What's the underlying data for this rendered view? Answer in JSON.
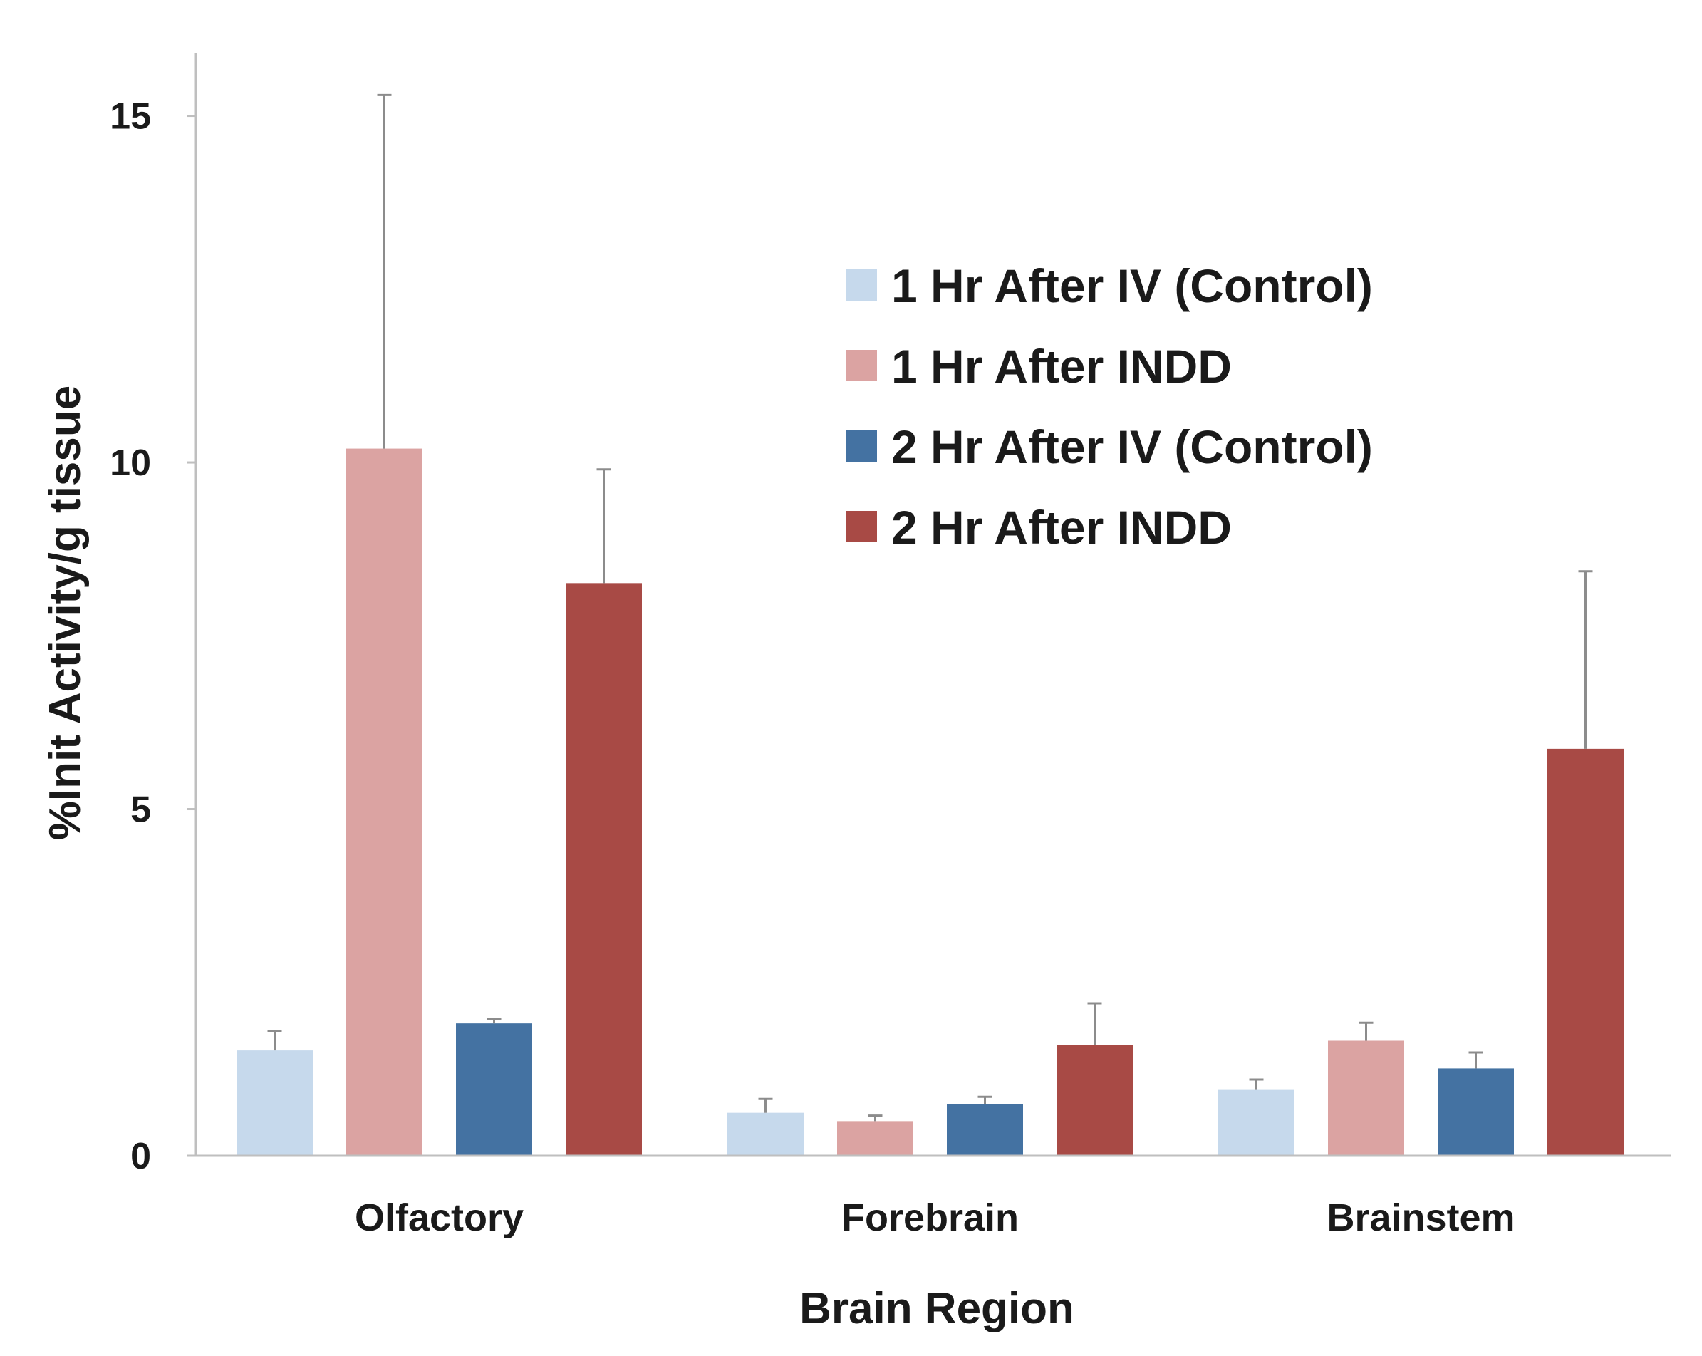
{
  "chart_data": {
    "type": "bar",
    "title": "",
    "xlabel": "Brain Region",
    "ylabel": "%Init Activity/g tissue",
    "ylim": [
      0,
      15.9
    ],
    "yticks": [
      "0",
      "5",
      "10",
      "15"
    ],
    "ytick_values": [
      0,
      5,
      10,
      15
    ],
    "grid": false,
    "legend_position": "top-right",
    "categories": [
      "Olfactory",
      "Forebrain",
      "Brainstem"
    ],
    "series": [
      {
        "name": "1 Hr After IV (Control)",
        "color": "#c6d9ec",
        "values": [
          1.52,
          0.62,
          0.96
        ],
        "errors": [
          0.28,
          0.2,
          0.14
        ]
      },
      {
        "name": "1 Hr After INDD",
        "color": "#dba3a2",
        "values": [
          10.2,
          0.5,
          1.66
        ],
        "errors": [
          5.1,
          0.08,
          0.26
        ]
      },
      {
        "name": "2 Hr After IV (Control)",
        "color": "#4472a2",
        "values": [
          1.91,
          0.74,
          1.26
        ],
        "errors": [
          0.06,
          0.11,
          0.23
        ]
      },
      {
        "name": "2 Hr After INDD",
        "color": "#a84a45",
        "values": [
          8.26,
          1.6,
          5.87
        ],
        "errors": [
          1.64,
          0.6,
          2.56
        ]
      }
    ]
  }
}
